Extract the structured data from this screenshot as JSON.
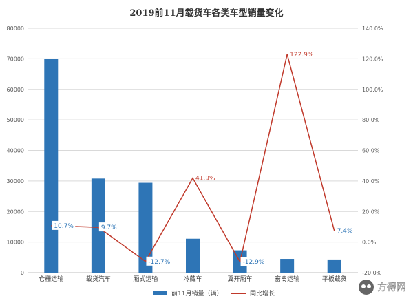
{
  "chart_data": {
    "type": "bar",
    "title": "2019前11月载货车各类车型销量变化",
    "categories": [
      "仓栅运输",
      "载货汽车",
      "厢式运输",
      "冷藏车",
      "翼开厢车",
      "畜禽运输",
      "平板载货"
    ],
    "series": [
      {
        "name": "前11月销量（辆）",
        "type": "bar",
        "axis": "left",
        "color": "#2e75b6",
        "values": [
          70000,
          30800,
          29400,
          11100,
          7300,
          4500,
          4300
        ]
      },
      {
        "name": "同比增长",
        "type": "line",
        "axis": "right",
        "color": "#c0392b",
        "values": [
          10.7,
          9.7,
          -12.7,
          41.9,
          -12.9,
          122.9,
          7.4
        ],
        "labels": [
          "10.7%",
          "9.7%",
          "-12.7%",
          "41.9%",
          "-12.9%",
          "122.9%",
          "7.4%"
        ]
      }
    ],
    "ylim_left": [
      0,
      80000
    ],
    "ylim_right": [
      -20,
      140
    ],
    "yticks_left": [
      "0",
      "10000",
      "20000",
      "30000",
      "40000",
      "50000",
      "60000",
      "70000",
      "80000"
    ],
    "yticks_right": [
      "-20.0%",
      "0.0%",
      "20.0%",
      "40.0%",
      "60.0%",
      "80.0%",
      "100.0%",
      "120.0%",
      "140.0%"
    ],
    "grid": true,
    "legend_position": "bottom"
  },
  "watermark": {
    "text": "方得网"
  }
}
